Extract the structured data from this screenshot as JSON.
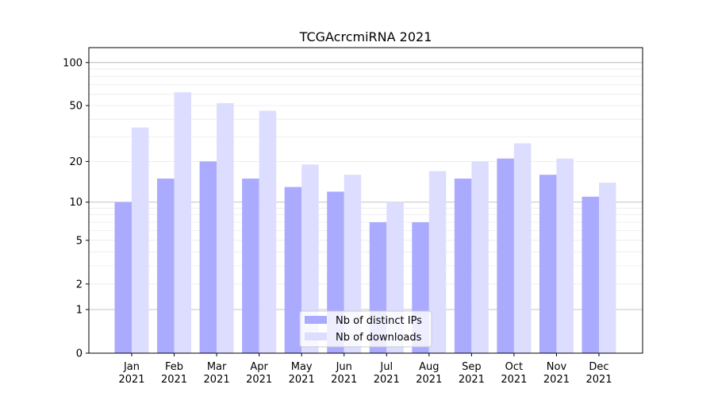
{
  "chart_data": {
    "type": "bar",
    "title": "TCGAcrcmiRNA 2021",
    "xlabel": "",
    "ylabel": "",
    "yscale": "symlog",
    "ylim": [
      0,
      127
    ],
    "categories": [
      [
        "Jan",
        "2021"
      ],
      [
        "Feb",
        "2021"
      ],
      [
        "Mar",
        "2021"
      ],
      [
        "Apr",
        "2021"
      ],
      [
        "May",
        "2021"
      ],
      [
        "Jun",
        "2021"
      ],
      [
        "Jul",
        "2021"
      ],
      [
        "Aug",
        "2021"
      ],
      [
        "Sep",
        "2021"
      ],
      [
        "Oct",
        "2021"
      ],
      [
        "Nov",
        "2021"
      ],
      [
        "Dec",
        "2021"
      ]
    ],
    "yticks": [
      0,
      1,
      2,
      5,
      10,
      20,
      50,
      100
    ],
    "ytick_labels": [
      "0",
      "1",
      "2",
      "5",
      "10",
      "20",
      "50",
      "100"
    ],
    "series": [
      {
        "name": "Nb of distinct IPs",
        "color": "#aaaaff",
        "values": [
          10,
          15,
          20,
          15,
          13,
          12,
          7,
          7,
          15,
          21,
          16,
          11
        ]
      },
      {
        "name": "Nb of downloads",
        "color": "#ddddff",
        "values": [
          35,
          62,
          52,
          46,
          19,
          16,
          10,
          17,
          20,
          27,
          21,
          14
        ]
      }
    ],
    "grid": true,
    "legend_position": "bottom-center"
  }
}
